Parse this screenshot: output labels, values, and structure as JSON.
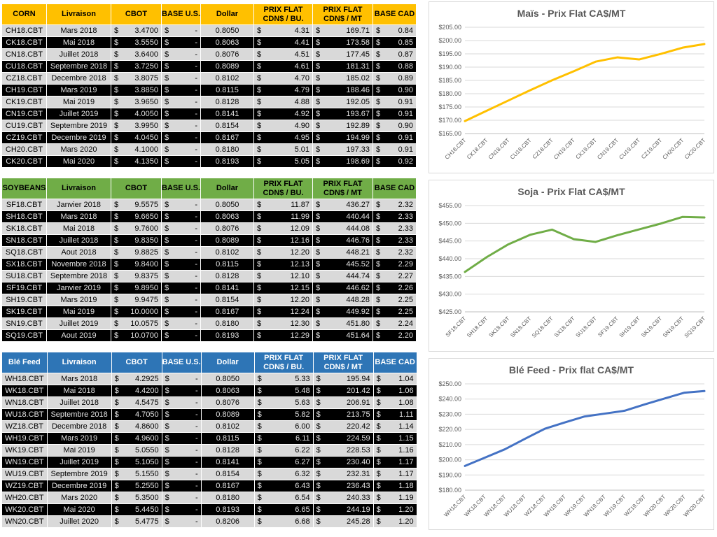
{
  "columns": [
    "Livraison",
    "CBOT",
    "BASE U.S.",
    "Dollar",
    "PRIX FLAT\nCDN$ / BU.",
    "PRIX FLAT\nCDN$ / MT",
    "BASE CAD"
  ],
  "tables": [
    {
      "name": "CORN",
      "header_bg": "#FFC000",
      "header_fg": "#000000",
      "rows": [
        {
          "dark": false,
          "c": [
            "CH18.CBT",
            "Mars 2018",
            "3.4700",
            "-",
            "0.8050",
            "4.31",
            "169.71",
            "0.84"
          ]
        },
        {
          "dark": true,
          "c": [
            "CK18.CBT",
            "Mai 2018",
            "3.5550",
            "-",
            "0.8063",
            "4.41",
            "173.58",
            "0.85"
          ]
        },
        {
          "dark": false,
          "c": [
            "CN18.CBT",
            "Juillet 2018",
            "3.6400",
            "-",
            "0.8076",
            "4.51",
            "177.45",
            "0.87"
          ]
        },
        {
          "dark": true,
          "c": [
            "CU18.CBT",
            "Septembre 2018",
            "3.7250",
            "-",
            "0.8089",
            "4.61",
            "181.31",
            "0.88"
          ]
        },
        {
          "dark": false,
          "c": [
            "CZ18.CBT",
            "Decembre 2018",
            "3.8075",
            "-",
            "0.8102",
            "4.70",
            "185.02",
            "0.89"
          ]
        },
        {
          "dark": true,
          "c": [
            "CH19.CBT",
            "Mars 2019",
            "3.8850",
            "-",
            "0.8115",
            "4.79",
            "188.46",
            "0.90"
          ]
        },
        {
          "dark": false,
          "c": [
            "CK19.CBT",
            "Mai 2019",
            "3.9650",
            "-",
            "0.8128",
            "4.88",
            "192.05",
            "0.91"
          ]
        },
        {
          "dark": true,
          "c": [
            "CN19.CBT",
            "Juillet 2019",
            "4.0050",
            "-",
            "0.8141",
            "4.92",
            "193.67",
            "0.91"
          ]
        },
        {
          "dark": false,
          "c": [
            "CU19.CBT",
            "Septembre 2019",
            "3.9950",
            "-",
            "0.8154",
            "4.90",
            "192.89",
            "0.90"
          ]
        },
        {
          "dark": true,
          "c": [
            "CZ19.CBT",
            "Decembre 2019",
            "4.0450",
            "-",
            "0.8167",
            "4.95",
            "194.99",
            "0.91"
          ]
        },
        {
          "dark": false,
          "c": [
            "CH20.CBT",
            "Mars 2020",
            "4.1000",
            "-",
            "0.8180",
            "5.01",
            "197.33",
            "0.91"
          ]
        },
        {
          "dark": true,
          "c": [
            "CK20.CBT",
            "Mai 2020",
            "4.1350",
            "-",
            "0.8193",
            "5.05",
            "198.69",
            "0.92"
          ]
        }
      ]
    },
    {
      "name": "SOYBEANS",
      "header_bg": "#70AD47",
      "header_fg": "#000000",
      "rows": [
        {
          "dark": false,
          "c": [
            "SF18.CBT",
            "Janvier 2018",
            "9.5575",
            "-",
            "0.8050",
            "11.87",
            "436.27",
            "2.32"
          ]
        },
        {
          "dark": true,
          "c": [
            "SH18.CBT",
            "Mars 2018",
            "9.6650",
            "-",
            "0.8063",
            "11.99",
            "440.44",
            "2.33"
          ]
        },
        {
          "dark": false,
          "c": [
            "SK18.CBT",
            "Mai 2018",
            "9.7600",
            "-",
            "0.8076",
            "12.09",
            "444.08",
            "2.33"
          ]
        },
        {
          "dark": true,
          "c": [
            "SN18.CBT",
            "Juillet 2018",
            "9.8350",
            "-",
            "0.8089",
            "12.16",
            "446.76",
            "2.33"
          ]
        },
        {
          "dark": false,
          "c": [
            "SQ18.CBT",
            "Aout 2018",
            "9.8825",
            "-",
            "0.8102",
            "12.20",
            "448.21",
            "2.32"
          ]
        },
        {
          "dark": true,
          "c": [
            "SX18.CBT",
            "Novembre 2018",
            "9.8400",
            "-",
            "0.8115",
            "12.13",
            "445.52",
            "2.29"
          ]
        },
        {
          "dark": false,
          "c": [
            "SU18.CBT",
            "Septembre 2018",
            "9.8375",
            "-",
            "0.8128",
            "12.10",
            "444.74",
            "2.27"
          ]
        },
        {
          "dark": true,
          "c": [
            "SF19.CBT",
            "Janvier 2019",
            "9.8950",
            "-",
            "0.8141",
            "12.15",
            "446.62",
            "2.26"
          ]
        },
        {
          "dark": false,
          "c": [
            "SH19.CBT",
            "Mars 2019",
            "9.9475",
            "-",
            "0.8154",
            "12.20",
            "448.28",
            "2.25"
          ]
        },
        {
          "dark": true,
          "c": [
            "SK19.CBT",
            "Mai 2019",
            "10.0000",
            "-",
            "0.8167",
            "12.24",
            "449.92",
            "2.25"
          ]
        },
        {
          "dark": false,
          "c": [
            "SN19.CBT",
            "Juillet 2019",
            "10.0575",
            "-",
            "0.8180",
            "12.30",
            "451.80",
            "2.24"
          ]
        },
        {
          "dark": true,
          "c": [
            "SQ19.CBT",
            "Aout 2019",
            "10.0700",
            "-",
            "0.8193",
            "12.29",
            "451.64",
            "2.20"
          ]
        }
      ]
    },
    {
      "name": "Blé Feed",
      "header_bg": "#2E75B6",
      "header_fg": "#FFFFFF",
      "rows": [
        {
          "dark": false,
          "c": [
            "WH18.CBT",
            "Mars 2018",
            "4.2925",
            "-",
            "0.8050",
            "5.33",
            "195.94",
            "1.04"
          ]
        },
        {
          "dark": true,
          "c": [
            "WK18.CBT",
            "Mai 2018",
            "4.4200",
            "-",
            "0.8063",
            "5.48",
            "201.42",
            "1.06"
          ]
        },
        {
          "dark": false,
          "c": [
            "WN18.CBT",
            "Juillet 2018",
            "4.5475",
            "-",
            "0.8076",
            "5.63",
            "206.91",
            "1.08"
          ]
        },
        {
          "dark": true,
          "c": [
            "WU18.CBT",
            "Septembre 2018",
            "4.7050",
            "-",
            "0.8089",
            "5.82",
            "213.75",
            "1.11"
          ]
        },
        {
          "dark": false,
          "c": [
            "WZ18.CBT",
            "Decembre 2018",
            "4.8600",
            "-",
            "0.8102",
            "6.00",
            "220.42",
            "1.14"
          ]
        },
        {
          "dark": true,
          "c": [
            "WH19.CBT",
            "Mars 2019",
            "4.9600",
            "-",
            "0.8115",
            "6.11",
            "224.59",
            "1.15"
          ]
        },
        {
          "dark": false,
          "c": [
            "WK19.CBT",
            "Mai 2019",
            "5.0550",
            "-",
            "0.8128",
            "6.22",
            "228.53",
            "1.16"
          ]
        },
        {
          "dark": true,
          "c": [
            "WN19.CBT",
            "Juillet 2019",
            "5.1050",
            "-",
            "0.8141",
            "6.27",
            "230.40",
            "1.17"
          ]
        },
        {
          "dark": false,
          "c": [
            "WU19.CBT",
            "Septembre 2019",
            "5.1550",
            "-",
            "0.8154",
            "6.32",
            "232.31",
            "1.17"
          ]
        },
        {
          "dark": true,
          "c": [
            "WZ19.CBT",
            "Decembre 2019",
            "5.2550",
            "-",
            "0.8167",
            "6.43",
            "236.43",
            "1.18"
          ]
        },
        {
          "dark": false,
          "c": [
            "WH20.CBT",
            "Mars 2020",
            "5.3500",
            "-",
            "0.8180",
            "6.54",
            "240.33",
            "1.19"
          ]
        },
        {
          "dark": true,
          "c": [
            "WK20.CBT",
            "Mai 2020",
            "5.4450",
            "-",
            "0.8193",
            "6.65",
            "244.19",
            "1.20"
          ]
        },
        {
          "dark": false,
          "c": [
            "WN20.CBT",
            "Juillet 2020",
            "5.4775",
            "-",
            "0.8206",
            "6.68",
            "245.28",
            "1.20"
          ]
        }
      ]
    }
  ],
  "chart_data": [
    {
      "type": "line",
      "title": "Maïs - Prix Flat CA$/MT",
      "color": "#FFC000",
      "categories": [
        "CH18.CBT",
        "CK18.CBT",
        "CN18.CBT",
        "CU18.CBT",
        "CZ18.CBT",
        "CH19.CBT",
        "CK19.CBT",
        "CN19.CBT",
        "CU19.CBT",
        "CZ19.CBT",
        "CH20.CBT",
        "CK20.CBT"
      ],
      "values": [
        169.71,
        173.58,
        177.45,
        181.31,
        185.02,
        188.46,
        192.05,
        193.67,
        192.89,
        194.99,
        197.33,
        198.69
      ],
      "xlabel": "",
      "ylabel": "",
      "ylim": [
        165,
        205
      ],
      "ytick_step": 5,
      "grid": true,
      "legend": "none"
    },
    {
      "type": "line",
      "title": "Soja - Prix Flat CA$/MT",
      "color": "#70AD47",
      "categories": [
        "SF18.CBT",
        "SH18.CBT",
        "SK18.CBT",
        "SN18.CBT",
        "SQ18.CBT",
        "SX18.CBT",
        "SU18.CBT",
        "SF19.CBT",
        "SH19.CBT",
        "SK19.CBT",
        "SN19.CBT",
        "SQ19.CBT"
      ],
      "values": [
        436.27,
        440.44,
        444.08,
        446.76,
        448.21,
        445.52,
        444.74,
        446.62,
        448.28,
        449.92,
        451.8,
        451.64
      ],
      "xlabel": "",
      "ylabel": "",
      "ylim": [
        425,
        455
      ],
      "ytick_step": 5,
      "grid": true,
      "legend": "none"
    },
    {
      "type": "line",
      "title": "Blé Feed - Prix flat CA$/MT",
      "color": "#4472C4",
      "categories": [
        "WH18.CBT",
        "WK18.CBT",
        "WN18.CBT",
        "WU18.CBT",
        "WZ18.CBT",
        "WH19.CBT",
        "WK19.CBT",
        "WN19.CBT",
        "WU19.CBT",
        "WZ19.CBT",
        "WH20.CBT",
        "WK20.CBT",
        "WN20.CBT"
      ],
      "values": [
        195.94,
        201.42,
        206.91,
        213.75,
        220.42,
        224.59,
        228.53,
        230.4,
        232.31,
        236.43,
        240.33,
        244.19,
        245.28
      ],
      "xlabel": "",
      "ylabel": "",
      "ylim": [
        180,
        250
      ],
      "ytick_step": 10,
      "grid": true,
      "legend": "none"
    }
  ]
}
